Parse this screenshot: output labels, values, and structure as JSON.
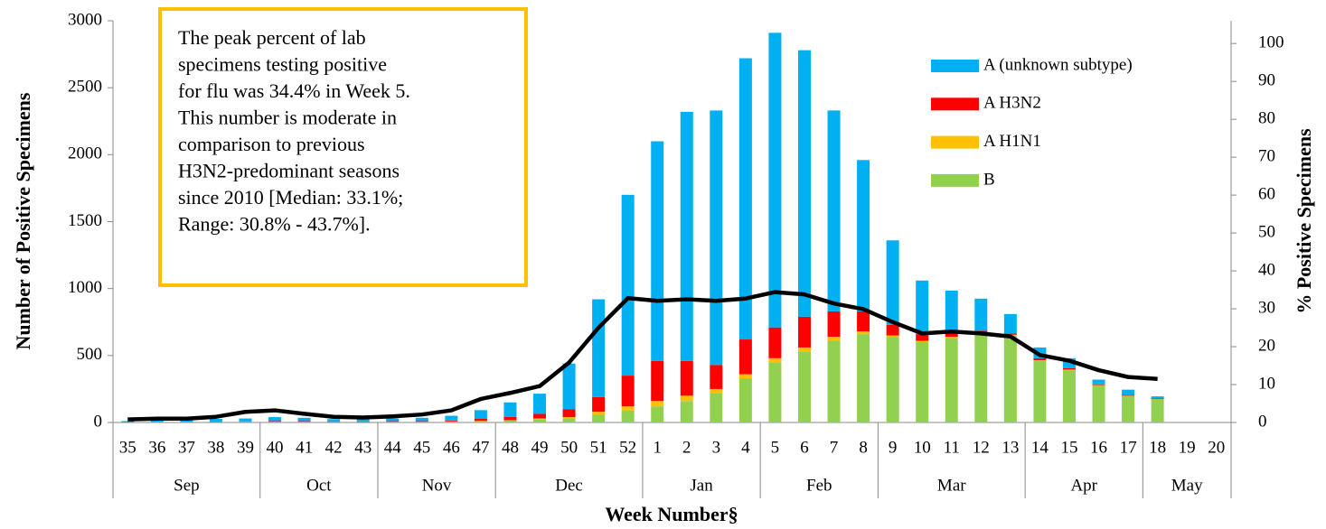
{
  "chart_data": {
    "type": "bar-line",
    "y_label": "Number of Positive Specimens",
    "y2_label": "% Positive Specimens",
    "x_label": "Week Number§",
    "annotation": [
      "The peak percent of lab",
      "specimens testing positive",
      "for flu was 34.4% in Week 5.",
      "This number is moderate in",
      "comparison to previous",
      "H3N2-predominant seasons",
      "since 2010 [Median: 33.1%;",
      "Range: 30.8% - 43.7%]."
    ],
    "annotation_color": "#ffc000",
    "categories": [
      "35",
      "36",
      "37",
      "38",
      "39",
      "40",
      "41",
      "42",
      "43",
      "44",
      "45",
      "46",
      "47",
      "48",
      "49",
      "50",
      "51",
      "52",
      "1",
      "2",
      "3",
      "4",
      "5",
      "6",
      "7",
      "8",
      "9",
      "10",
      "11",
      "12",
      "13",
      "14",
      "15",
      "16",
      "17",
      "18",
      "19",
      "20"
    ],
    "months": [
      {
        "label": "Sep",
        "count": 5
      },
      {
        "label": "Oct",
        "count": 4
      },
      {
        "label": "Nov",
        "count": 4
      },
      {
        "label": "Dec",
        "count": 5
      },
      {
        "label": "Jan",
        "count": 4
      },
      {
        "label": "Feb",
        "count": 4
      },
      {
        "label": "Mar",
        "count": 5
      },
      {
        "label": "Apr",
        "count": 4
      },
      {
        "label": "May",
        "count": 3
      }
    ],
    "series": [
      {
        "name": "B",
        "color": "#92d050",
        "values": [
          2,
          3,
          3,
          4,
          5,
          5,
          5,
          4,
          4,
          5,
          5,
          7,
          10,
          15,
          25,
          30,
          60,
          90,
          120,
          160,
          220,
          330,
          450,
          530,
          610,
          660,
          640,
          600,
          630,
          660,
          650,
          460,
          390,
          280,
          200,
          175,
          null,
          null
        ]
      },
      {
        "name": "A H1N1",
        "color": "#ffc000",
        "values": [
          0,
          0,
          0,
          0,
          0,
          0,
          0,
          0,
          0,
          0,
          0,
          1,
          2,
          2,
          5,
          10,
          20,
          30,
          40,
          40,
          30,
          30,
          30,
          30,
          30,
          20,
          10,
          10,
          10,
          5,
          5,
          5,
          5,
          0,
          0,
          0,
          null,
          null
        ]
      },
      {
        "name": "A H3N2",
        "color": "#ff0000",
        "values": [
          1,
          2,
          2,
          3,
          3,
          5,
          5,
          4,
          4,
          5,
          5,
          7,
          15,
          25,
          35,
          60,
          110,
          230,
          300,
          260,
          180,
          260,
          230,
          230,
          190,
          150,
          80,
          50,
          30,
          20,
          10,
          15,
          10,
          5,
          5,
          5,
          null,
          null
        ]
      },
      {
        "name": "A (unknown subtype)",
        "color": "#00b0f0",
        "values": [
          7,
          10,
          15,
          20,
          22,
          30,
          25,
          17,
          17,
          20,
          25,
          35,
          65,
          108,
          150,
          340,
          730,
          1350,
          1640,
          1860,
          1900,
          2100,
          2200,
          1990,
          1500,
          1130,
          630,
          400,
          315,
          240,
          145,
          80,
          75,
          35,
          40,
          15,
          null,
          null
        ]
      },
      {
        "type": "line",
        "axis": "y2",
        "color": "#000000",
        "values": [
          0.8,
          1,
          1,
          1.5,
          2.8,
          3.2,
          2.3,
          1.5,
          1.3,
          1.6,
          2.1,
          3.2,
          6.2,
          7.8,
          9.6,
          15.8,
          25,
          32.8,
          32.1,
          32.5,
          32.1,
          32.7,
          34.4,
          33.8,
          31.4,
          29.9,
          26.5,
          23.5,
          24,
          23.5,
          22.7,
          17.8,
          16.3,
          13.8,
          12,
          11.5,
          null,
          null
        ]
      }
    ],
    "ylim": [
      0,
      3000
    ],
    "yticks": [
      0,
      500,
      1000,
      1500,
      2000,
      2500,
      3000
    ],
    "y2lim": [
      0,
      106
    ],
    "y2ticks": [
      0,
      10,
      20,
      30,
      40,
      50,
      60,
      70,
      80,
      90,
      100
    ]
  }
}
